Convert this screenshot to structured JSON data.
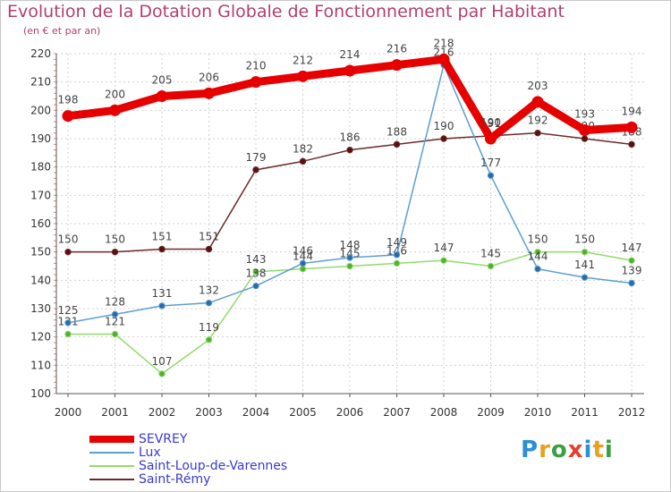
{
  "title": "Evolution de la Dotation Globale de Fonctionnement par Habitant",
  "subtitle": "(en € et par an)",
  "brand": [
    "P",
    "r",
    "o",
    "x",
    "i",
    "t",
    "i"
  ],
  "brand_colors": [
    "#2a8fd8",
    "#e8a020",
    "#3aa040",
    "#e84030",
    "#2a8fd8",
    "#e8a020",
    "#3aa040"
  ],
  "chart_data": {
    "type": "line",
    "title": "Evolution de la Dotation Globale de Fonctionnement par Habitant",
    "ylabel": "(en € et par an)",
    "xlabel": "",
    "ylim": [
      100,
      220
    ],
    "yticks": [
      100,
      110,
      120,
      130,
      140,
      150,
      160,
      170,
      180,
      190,
      200,
      210,
      220
    ],
    "x": [
      "2000",
      "2001",
      "2002",
      "2003",
      "2004",
      "2005",
      "2006",
      "2007",
      "2008",
      "2009",
      "2010",
      "2011",
      "2012"
    ],
    "grid": true,
    "legend_position": "bottom-left",
    "series": [
      {
        "name": "SEVREY",
        "color": "#e60000",
        "values": [
          198,
          200,
          205,
          206,
          210,
          212,
          214,
          216,
          218,
          190,
          203,
          193,
          194
        ]
      },
      {
        "name": "Lux",
        "color": "#5aa0d0",
        "values": [
          125,
          128,
          131,
          132,
          138,
          146,
          148,
          149,
          216,
          177,
          144,
          141,
          139
        ]
      },
      {
        "name": "Saint-Loup-de-Varennes",
        "color": "#90dc6a",
        "values": [
          121,
          121,
          107,
          119,
          143,
          144,
          145,
          146,
          147,
          145,
          150,
          150,
          147
        ]
      },
      {
        "name": "Saint-Rémy",
        "color": "#6a2a2a",
        "values": [
          150,
          150,
          151,
          151,
          179,
          182,
          186,
          188,
          190,
          191,
          192,
          190,
          188
        ]
      }
    ]
  }
}
